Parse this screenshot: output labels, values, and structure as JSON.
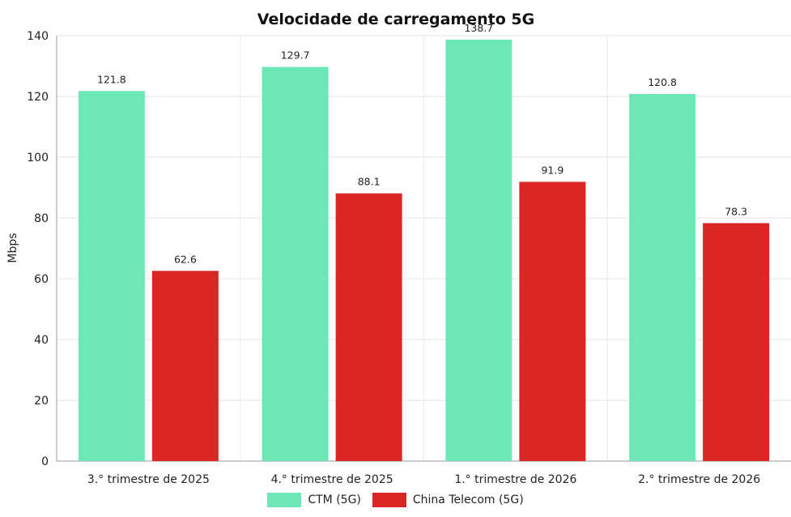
{
  "chart_data": {
    "type": "bar",
    "title": "Velocidade de carregamento 5G",
    "ylabel": "Mbps",
    "xlabel": "",
    "ylim": [
      0,
      140
    ],
    "yticks": [
      0,
      20,
      40,
      60,
      80,
      100,
      120,
      140
    ],
    "grid": true,
    "legend_position": "bottom",
    "categories": [
      "3.°  trimestre de 2025",
      "4.°  trimestre de 2025",
      "1.°  trimestre de 2026",
      "2.°  trimestre de 2026"
    ],
    "series": [
      {
        "name": "CTM (5G)",
        "color": "#6ee7b7",
        "values": [
          121.8,
          129.7,
          138.7,
          120.8
        ]
      },
      {
        "name": "China Telecom (5G)",
        "color": "#dc2626",
        "values": [
          62.6,
          88.1,
          91.9,
          78.3
        ]
      }
    ]
  }
}
